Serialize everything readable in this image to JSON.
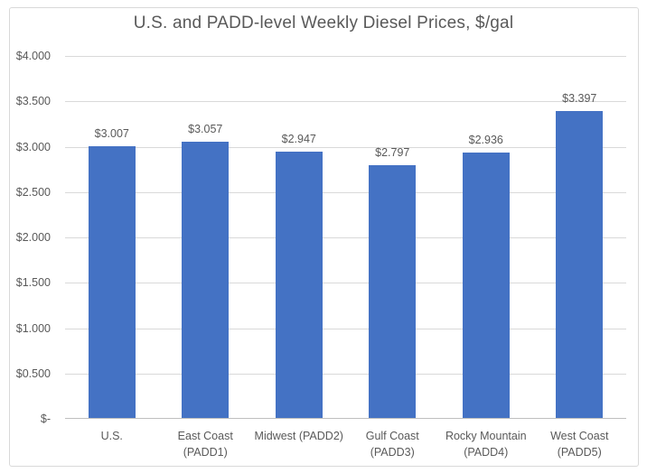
{
  "chart_data": {
    "type": "bar",
    "title": "U.S. and PADD-level Weekly Diesel Prices, $/gal",
    "categories": [
      "U.S.",
      "East Coast (PADD1)",
      "Midwest (PADD2)",
      "Gulf Coast (PADD3)",
      "Rocky Mountain (PADD4)",
      "West Coast (PADD5)"
    ],
    "category_lines": [
      [
        "U.S."
      ],
      [
        "East Coast",
        "(PADD1)"
      ],
      [
        "Midwest (PADD2)"
      ],
      [
        "Gulf Coast",
        "(PADD3)"
      ],
      [
        "Rocky Mountain",
        "(PADD4)"
      ],
      [
        "West Coast",
        "(PADD5)"
      ]
    ],
    "values": [
      3.007,
      3.057,
      2.947,
      2.797,
      2.936,
      3.397
    ],
    "value_labels": [
      "$3.007",
      "$3.057",
      "$2.947",
      "$2.797",
      "$2.936",
      "$3.397"
    ],
    "xlabel": "",
    "ylabel": "",
    "ylim": [
      0,
      4.0
    ],
    "y_ticks": [
      {
        "v": 0.0,
        "label": "$-"
      },
      {
        "v": 0.5,
        "label": "$0.500"
      },
      {
        "v": 1.0,
        "label": "$1.000"
      },
      {
        "v": 1.5,
        "label": "$1.500"
      },
      {
        "v": 2.0,
        "label": "$2.000"
      },
      {
        "v": 2.5,
        "label": "$2.500"
      },
      {
        "v": 3.0,
        "label": "$3.000"
      },
      {
        "v": 3.5,
        "label": "$3.500"
      },
      {
        "v": 4.0,
        "label": "$4.000"
      }
    ],
    "grid": true,
    "legend": "none",
    "colors": {
      "bar": "#4472c4",
      "text": "#595959",
      "gridline": "#d9d9d9",
      "axis_line": "#bfbfbf",
      "chart_border": "#d9d9d9",
      "background": "#ffffff"
    }
  }
}
